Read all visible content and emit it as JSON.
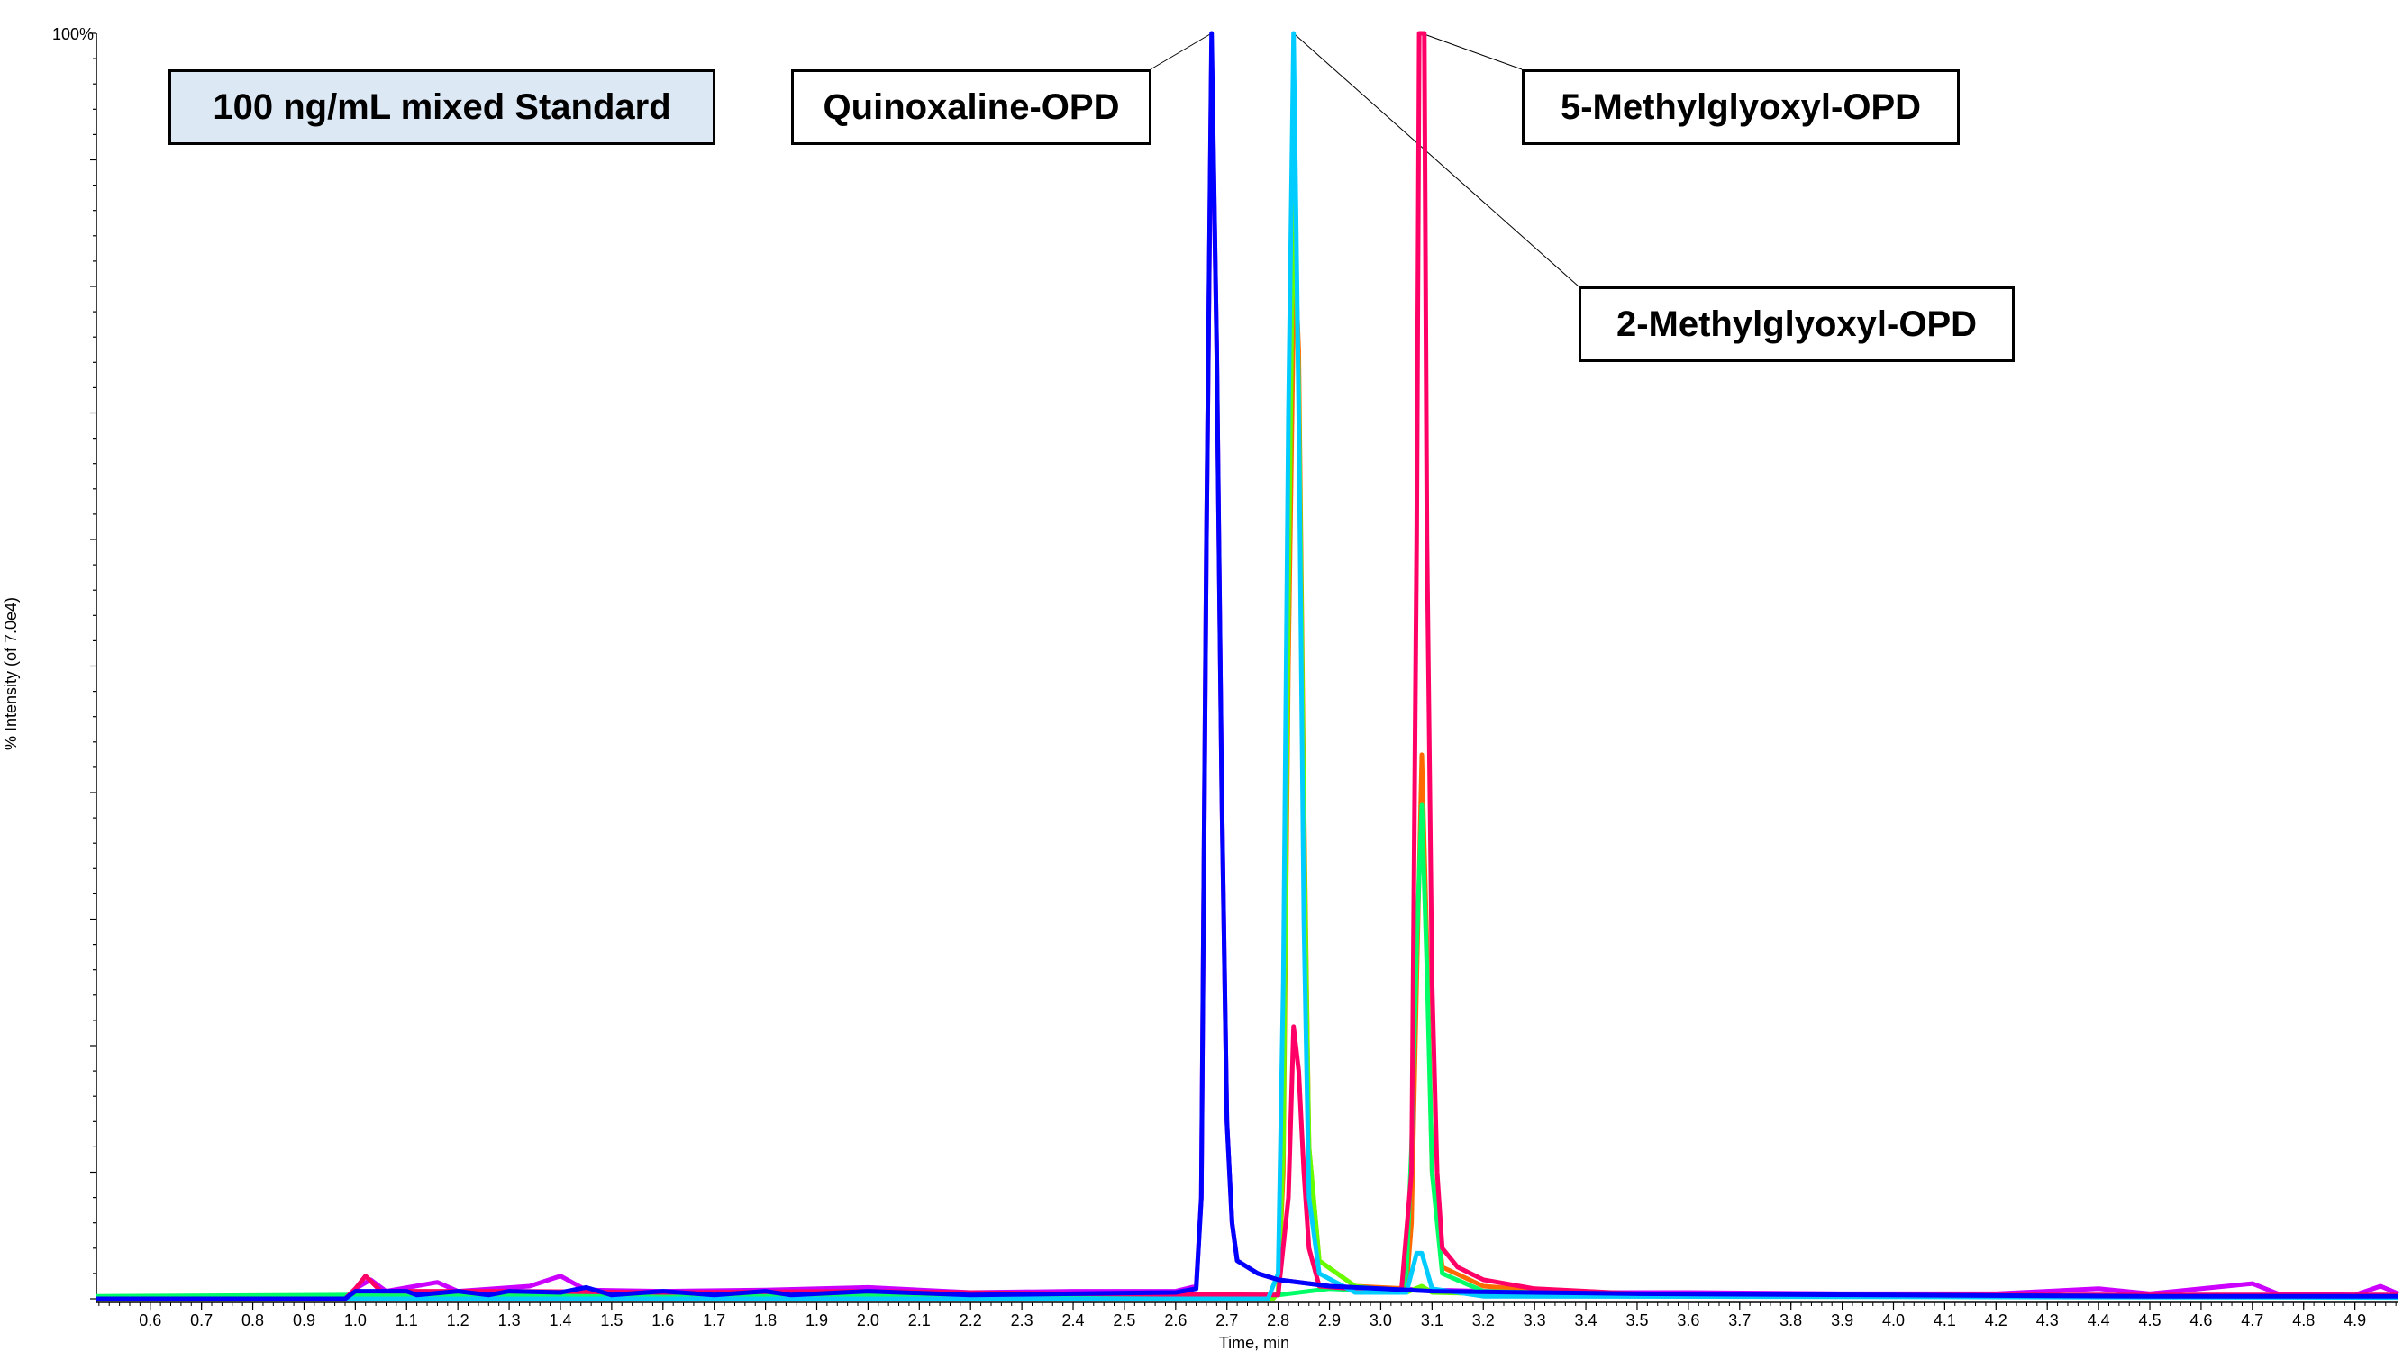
{
  "chart_data": {
    "type": "line",
    "title": "100 ng/mL mixed Standard",
    "xlabel": "Time, min",
    "ylabel": "% Intensity (of 7.0e4)",
    "y_top_label": "100%",
    "xlim": [
      0.495,
      4.985
    ],
    "ylim": [
      0,
      100
    ],
    "x_ticks": [
      "0.6",
      "0.7",
      "0.8",
      "0.9",
      "1.0",
      "1.1",
      "1.2",
      "1.3",
      "1.4",
      "1.5",
      "1.6",
      "1.7",
      "1.8",
      "1.9",
      "2.0",
      "2.1",
      "2.2",
      "2.3",
      "2.4",
      "2.5",
      "2.6",
      "2.7",
      "2.8",
      "2.9",
      "3.0",
      "3.1",
      "3.2",
      "3.3",
      "3.4",
      "3.5",
      "3.6",
      "3.7",
      "3.8",
      "3.9",
      "4.0",
      "4.1",
      "4.2",
      "4.3",
      "4.4",
      "4.5",
      "4.6",
      "4.7",
      "4.8",
      "4.9"
    ],
    "annotations": [
      {
        "text": "Quinoxaline-OPD",
        "x": 2.67,
        "y": 100
      },
      {
        "text": "2-Methylglyoxyl-OPD",
        "x": 2.83,
        "y": 100
      },
      {
        "text": "5-Methylglyoxyl-OPD",
        "x": 3.08,
        "y": 100
      }
    ],
    "series": [
      {
        "name": "magenta",
        "color": "#cc00ff",
        "points": [
          [
            0.495,
            0
          ],
          [
            0.98,
            0
          ],
          [
            1.0,
            0.8
          ],
          [
            1.03,
            1.5
          ],
          [
            1.06,
            0.6
          ],
          [
            1.16,
            1.3
          ],
          [
            1.2,
            0.6
          ],
          [
            1.34,
            1.0
          ],
          [
            1.4,
            1.8
          ],
          [
            1.45,
            0.7
          ],
          [
            1.6,
            0.6
          ],
          [
            1.8,
            0.7
          ],
          [
            2.0,
            0.9
          ],
          [
            2.2,
            0.5
          ],
          [
            2.4,
            0.6
          ],
          [
            2.6,
            0.6
          ],
          [
            2.64,
            1.0
          ],
          [
            2.65,
            8
          ],
          [
            2.66,
            60
          ],
          [
            2.67,
            99
          ],
          [
            2.68,
            75
          ],
          [
            2.69,
            40
          ],
          [
            2.7,
            14
          ],
          [
            2.71,
            6
          ],
          [
            2.72,
            3
          ],
          [
            2.76,
            2
          ],
          [
            2.8,
            1.5
          ],
          [
            2.86,
            1.2
          ],
          [
            2.9,
            1
          ],
          [
            3.0,
            0.8
          ],
          [
            3.2,
            0.6
          ],
          [
            3.4,
            0.5
          ],
          [
            3.6,
            0.5
          ],
          [
            3.9,
            0.4
          ],
          [
            4.2,
            0.4
          ],
          [
            4.4,
            0.8
          ],
          [
            4.5,
            0.4
          ],
          [
            4.7,
            1.2
          ],
          [
            4.75,
            0.4
          ],
          [
            4.9,
            0.3
          ],
          [
            4.95,
            1.0
          ],
          [
            4.985,
            0.4
          ]
        ]
      },
      {
        "name": "orange",
        "color": "#ff6a00",
        "points": [
          [
            0.495,
            0
          ],
          [
            2.79,
            0
          ],
          [
            2.8,
            0.5
          ],
          [
            2.81,
            10
          ],
          [
            2.82,
            50
          ],
          [
            2.83,
            78
          ],
          [
            2.835,
            80
          ],
          [
            2.84,
            75
          ],
          [
            2.85,
            40
          ],
          [
            2.86,
            12
          ],
          [
            2.88,
            3
          ],
          [
            2.95,
            1
          ],
          [
            3.05,
            0.8
          ],
          [
            3.06,
            6
          ],
          [
            3.07,
            25
          ],
          [
            3.08,
            43
          ],
          [
            3.09,
            28
          ],
          [
            3.1,
            10
          ],
          [
            3.12,
            2.5
          ],
          [
            3.2,
            1
          ],
          [
            3.4,
            0.4
          ],
          [
            4.0,
            0.2
          ],
          [
            4.985,
            0.2
          ]
        ]
      },
      {
        "name": "yellow-green",
        "color": "#66ff00",
        "points": [
          [
            0.495,
            0
          ],
          [
            2.79,
            0
          ],
          [
            2.8,
            0.5
          ],
          [
            2.81,
            12
          ],
          [
            2.82,
            55
          ],
          [
            2.83,
            90
          ],
          [
            2.84,
            72
          ],
          [
            2.85,
            38
          ],
          [
            2.86,
            12
          ],
          [
            2.88,
            3
          ],
          [
            2.95,
            1
          ],
          [
            3.05,
            0.5
          ],
          [
            3.08,
            1
          ],
          [
            3.1,
            0.5
          ],
          [
            3.3,
            0.3
          ],
          [
            4.985,
            0.2
          ]
        ]
      },
      {
        "name": "green",
        "color": "#00ff66",
        "points": [
          [
            0.495,
            0.2
          ],
          [
            1.0,
            0.3
          ],
          [
            2.0,
            0.3
          ],
          [
            2.8,
            0.3
          ],
          [
            2.9,
            0.8
          ],
          [
            3.04,
            0.5
          ],
          [
            3.05,
            2
          ],
          [
            3.06,
            12
          ],
          [
            3.07,
            28
          ],
          [
            3.08,
            39
          ],
          [
            3.09,
            26
          ],
          [
            3.1,
            10
          ],
          [
            3.12,
            2
          ],
          [
            3.2,
            0.6
          ],
          [
            3.5,
            0.3
          ],
          [
            4.985,
            0.2
          ]
        ]
      },
      {
        "name": "red",
        "color": "#ff0066",
        "points": [
          [
            0.495,
            0
          ],
          [
            0.98,
            0
          ],
          [
            1.0,
            0.8
          ],
          [
            1.02,
            1.8
          ],
          [
            1.05,
            0.6
          ],
          [
            1.3,
            0.6
          ],
          [
            1.6,
            0.5
          ],
          [
            2.0,
            0.6
          ],
          [
            2.4,
            0.4
          ],
          [
            2.8,
            0.3
          ],
          [
            2.82,
            8
          ],
          [
            2.83,
            21.5
          ],
          [
            2.84,
            18
          ],
          [
            2.85,
            10
          ],
          [
            2.86,
            4
          ],
          [
            2.88,
            1
          ],
          [
            3.04,
            0.5
          ],
          [
            3.06,
            10
          ],
          [
            3.07,
            60
          ],
          [
            3.075,
            100
          ],
          [
            3.085,
            100
          ],
          [
            3.09,
            60
          ],
          [
            3.1,
            25
          ],
          [
            3.11,
            10
          ],
          [
            3.12,
            4
          ],
          [
            3.15,
            2.5
          ],
          [
            3.2,
            1.5
          ],
          [
            3.3,
            0.8
          ],
          [
            3.5,
            0.4
          ],
          [
            4.0,
            0.3
          ],
          [
            4.5,
            0.3
          ],
          [
            4.985,
            0.3
          ]
        ]
      },
      {
        "name": "cyan",
        "color": "#00ccff",
        "points": [
          [
            0.495,
            0
          ],
          [
            2.78,
            0
          ],
          [
            2.8,
            2
          ],
          [
            2.81,
            25
          ],
          [
            2.82,
            70
          ],
          [
            2.83,
            100
          ],
          [
            2.84,
            70
          ],
          [
            2.85,
            30
          ],
          [
            2.86,
            8
          ],
          [
            2.88,
            2
          ],
          [
            2.95,
            0.5
          ],
          [
            3.05,
            0.5
          ],
          [
            3.07,
            3.6
          ],
          [
            3.08,
            3.6
          ],
          [
            3.1,
            0.8
          ],
          [
            3.2,
            0.2
          ],
          [
            4.985,
            0.1
          ]
        ]
      },
      {
        "name": "blue",
        "color": "#0000ff",
        "points": [
          [
            0.495,
            0
          ],
          [
            0.98,
            0
          ],
          [
            1.0,
            0.6
          ],
          [
            1.1,
            0.6
          ],
          [
            1.12,
            0.3
          ],
          [
            1.2,
            0.6
          ],
          [
            1.26,
            0.3
          ],
          [
            1.3,
            0.6
          ],
          [
            1.4,
            0.5
          ],
          [
            1.45,
            0.9
          ],
          [
            1.5,
            0.3
          ],
          [
            1.6,
            0.6
          ],
          [
            1.7,
            0.3
          ],
          [
            1.8,
            0.6
          ],
          [
            1.85,
            0.3
          ],
          [
            2.0,
            0.6
          ],
          [
            2.2,
            0.3
          ],
          [
            2.4,
            0.4
          ],
          [
            2.6,
            0.5
          ],
          [
            2.64,
            0.8
          ],
          [
            2.65,
            8
          ],
          [
            2.66,
            60
          ],
          [
            2.67,
            100
          ],
          [
            2.68,
            75
          ],
          [
            2.69,
            40
          ],
          [
            2.7,
            14
          ],
          [
            2.71,
            6
          ],
          [
            2.72,
            3
          ],
          [
            2.76,
            2
          ],
          [
            2.8,
            1.5
          ],
          [
            2.9,
            1
          ],
          [
            3.0,
            0.8
          ],
          [
            3.1,
            0.6
          ],
          [
            3.3,
            0.5
          ],
          [
            3.5,
            0.4
          ],
          [
            4.0,
            0.3
          ],
          [
            4.5,
            0.2
          ],
          [
            4.985,
            0.2
          ]
        ]
      }
    ]
  }
}
